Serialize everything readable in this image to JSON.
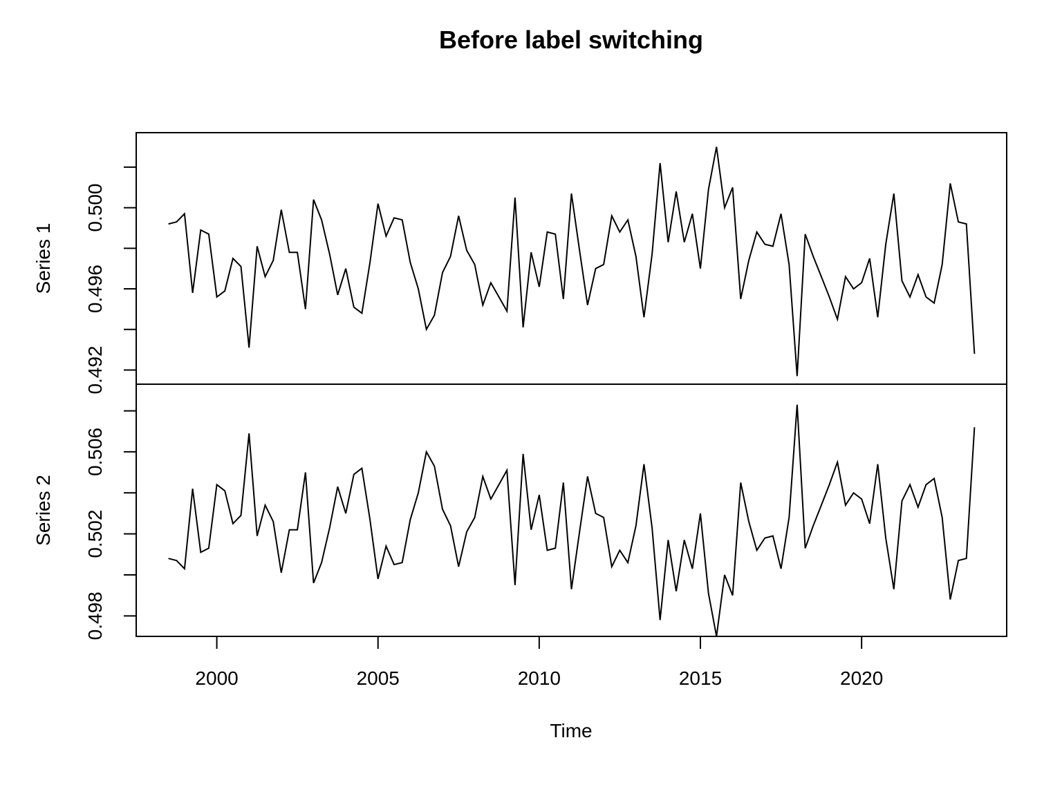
{
  "chart_data": {
    "type": "line",
    "title": "Before label switching",
    "xlabel": "Time",
    "x_start": 1998.5,
    "x_step": 0.25,
    "x_ticks": [
      2000,
      2005,
      2010,
      2015,
      2020
    ],
    "xlim": [
      1997.5,
      2024.5
    ],
    "panels": [
      {
        "name": "Series 1",
        "ylim": [
          0.4913,
          0.5037
        ],
        "y_ticks": [
          0.492,
          0.494,
          0.496,
          0.498,
          0.5,
          0.502
        ],
        "y_tick_labels": [
          "0.492",
          "",
          "0.496",
          "",
          "0.500",
          ""
        ],
        "values": [
          0.4992,
          0.4993,
          0.4997,
          0.4958,
          0.4989,
          0.4987,
          0.4956,
          0.4959,
          0.4975,
          0.4971,
          0.4931,
          0.4981,
          0.4966,
          0.4974,
          0.4999,
          0.4978,
          0.4978,
          0.495,
          0.5004,
          0.4994,
          0.4977,
          0.4957,
          0.497,
          0.4951,
          0.4948,
          0.4973,
          0.5002,
          0.4986,
          0.4995,
          0.4994,
          0.4973,
          0.496,
          0.494,
          0.4947,
          0.4968,
          0.4976,
          0.4996,
          0.4979,
          0.4972,
          0.4952,
          0.4963,
          0.4956,
          0.4949,
          0.5005,
          0.4941,
          0.4978,
          0.4961,
          0.4988,
          0.4987,
          0.4955,
          0.5007,
          0.4979,
          0.4952,
          0.497,
          0.4972,
          0.4996,
          0.4988,
          0.4994,
          0.4976,
          0.4946,
          0.4977,
          0.5022,
          0.4983,
          0.5008,
          0.4983,
          0.4997,
          0.497,
          0.5009,
          0.503,
          0.5,
          0.501,
          0.4955,
          0.4974,
          0.4988,
          0.4982,
          0.4981,
          0.4997,
          0.4972,
          0.4917,
          0.4987,
          0.4976,
          0.4966,
          0.4956,
          0.4945,
          0.4966,
          0.496,
          0.4963,
          0.4975,
          0.4946,
          0.4982,
          0.5007,
          0.4964,
          0.4956,
          0.4967,
          0.4956,
          0.4953,
          0.4972,
          0.5012,
          0.4993,
          0.4992,
          0.4928
        ]
      },
      {
        "name": "Series 2",
        "ylim": [
          0.497,
          0.5093
        ],
        "y_ticks": [
          0.498,
          0.5,
          0.502,
          0.504,
          0.506,
          0.508
        ],
        "y_tick_labels": [
          "0.498",
          "",
          "0.502",
          "",
          "0.506",
          ""
        ],
        "values": [
          0.5008,
          0.5007,
          0.5003,
          0.5042,
          0.5011,
          0.5013,
          0.5044,
          0.5041,
          0.5025,
          0.5029,
          0.5069,
          0.5019,
          0.5034,
          0.5026,
          0.5001,
          0.5022,
          0.5022,
          0.505,
          0.4996,
          0.5006,
          0.5023,
          0.5043,
          0.503,
          0.5049,
          0.5052,
          0.5027,
          0.4998,
          0.5014,
          0.5005,
          0.5006,
          0.5027,
          0.504,
          0.506,
          0.5053,
          0.5032,
          0.5024,
          0.5004,
          0.5021,
          0.5028,
          0.5048,
          0.5037,
          0.5044,
          0.5051,
          0.4995,
          0.5059,
          0.5022,
          0.5039,
          0.5012,
          0.5013,
          0.5045,
          0.4993,
          0.5021,
          0.5048,
          0.503,
          0.5028,
          0.5004,
          0.5012,
          0.5006,
          0.5024,
          0.5054,
          0.5023,
          0.4978,
          0.5017,
          0.4992,
          0.5017,
          0.5003,
          0.503,
          0.4991,
          0.497,
          0.5,
          0.499,
          0.5045,
          0.5026,
          0.5012,
          0.5018,
          0.5019,
          0.5003,
          0.5028,
          0.5083,
          0.5013,
          0.5024,
          0.5034,
          0.5044,
          0.5055,
          0.5034,
          0.504,
          0.5037,
          0.5025,
          0.5054,
          0.5018,
          0.4993,
          0.5036,
          0.5044,
          0.5033,
          0.5044,
          0.5047,
          0.5028,
          0.4988,
          0.5007,
          0.5008,
          0.5072
        ]
      }
    ]
  }
}
